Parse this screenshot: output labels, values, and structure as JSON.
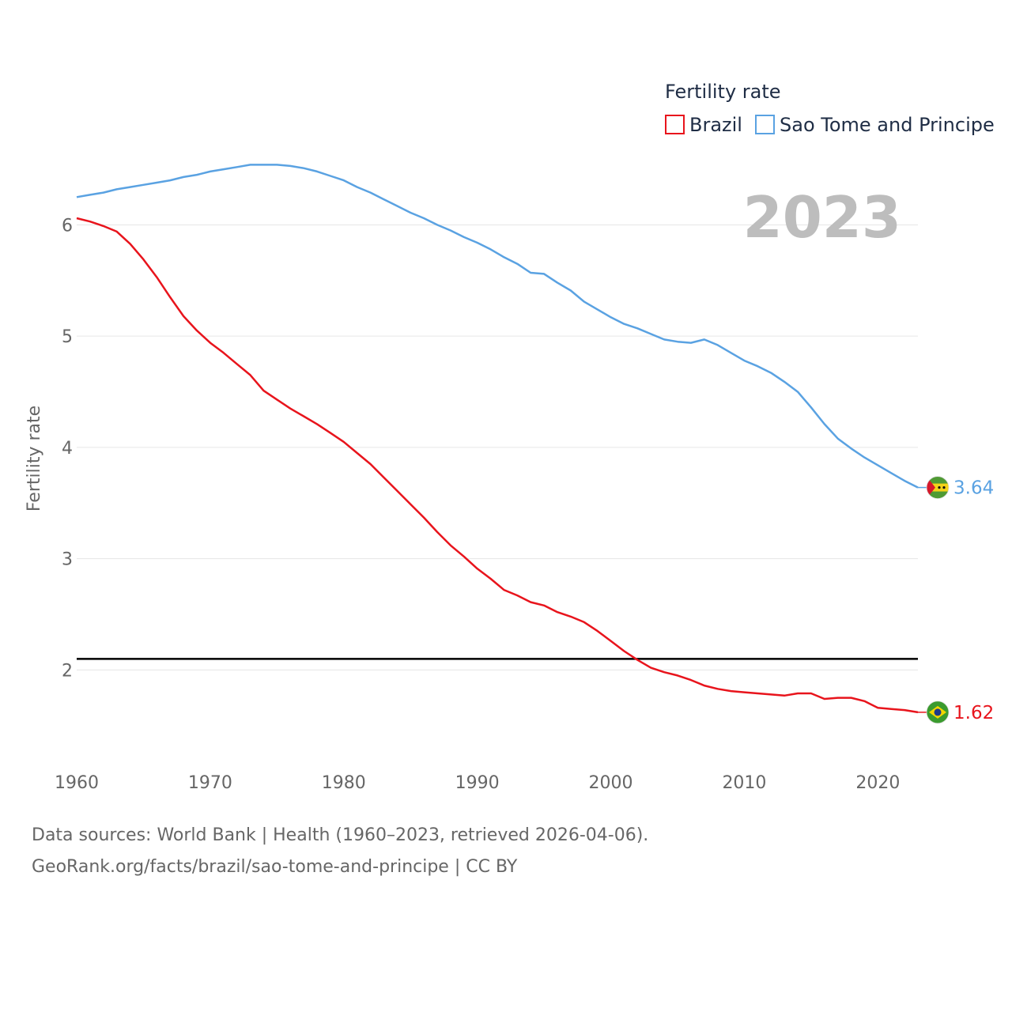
{
  "chart_data": {
    "type": "line",
    "title": "Fertility rate",
    "xlabel": "",
    "ylabel": "Fertility rate",
    "year_label": "2023",
    "xlim": [
      1960,
      2023
    ],
    "ylim": [
      1.2,
      6.6
    ],
    "x_ticks": [
      1960,
      1970,
      1980,
      1990,
      2000,
      2010,
      2020
    ],
    "y_ticks": [
      2,
      3,
      4,
      5,
      6
    ],
    "reference_line": 2.1,
    "x": [
      1960,
      1961,
      1962,
      1963,
      1964,
      1965,
      1966,
      1967,
      1968,
      1969,
      1970,
      1971,
      1972,
      1973,
      1974,
      1975,
      1976,
      1977,
      1978,
      1979,
      1980,
      1981,
      1982,
      1983,
      1984,
      1985,
      1986,
      1987,
      1988,
      1989,
      1990,
      1991,
      1992,
      1993,
      1994,
      1995,
      1996,
      1997,
      1998,
      1999,
      2000,
      2001,
      2002,
      2003,
      2004,
      2005,
      2006,
      2007,
      2008,
      2009,
      2010,
      2011,
      2012,
      2013,
      2014,
      2015,
      2016,
      2017,
      2018,
      2019,
      2020,
      2021,
      2022,
      2023
    ],
    "series": [
      {
        "name": "Brazil",
        "color": "#e8141c",
        "end_label": "1.62",
        "flag": "brazil-flag",
        "values": [
          6.06,
          6.03,
          5.99,
          5.94,
          5.83,
          5.69,
          5.53,
          5.35,
          5.18,
          5.05,
          4.94,
          4.85,
          4.75,
          4.65,
          4.51,
          4.43,
          4.35,
          4.28,
          4.21,
          4.13,
          4.05,
          3.95,
          3.85,
          3.73,
          3.61,
          3.49,
          3.37,
          3.24,
          3.12,
          3.02,
          2.91,
          2.82,
          2.72,
          2.67,
          2.61,
          2.58,
          2.52,
          2.48,
          2.43,
          2.35,
          2.26,
          2.17,
          2.09,
          2.02,
          1.98,
          1.95,
          1.91,
          1.86,
          1.83,
          1.81,
          1.8,
          1.79,
          1.78,
          1.77,
          1.79,
          1.79,
          1.74,
          1.75,
          1.75,
          1.72,
          1.66,
          1.65,
          1.64,
          1.62
        ]
      },
      {
        "name": "Sao Tome and Principe",
        "color": "#5aa2e2",
        "end_label": "3.64",
        "flag": "sao-tome-flag",
        "values": [
          6.25,
          6.27,
          6.29,
          6.32,
          6.34,
          6.36,
          6.38,
          6.4,
          6.43,
          6.45,
          6.48,
          6.5,
          6.52,
          6.54,
          6.54,
          6.54,
          6.53,
          6.51,
          6.48,
          6.44,
          6.4,
          6.34,
          6.29,
          6.23,
          6.17,
          6.11,
          6.06,
          6.0,
          5.95,
          5.89,
          5.84,
          5.78,
          5.71,
          5.65,
          5.57,
          5.56,
          5.48,
          5.41,
          5.31,
          5.24,
          5.17,
          5.11,
          5.07,
          5.02,
          4.97,
          4.95,
          4.94,
          4.97,
          4.92,
          4.85,
          4.78,
          4.73,
          4.67,
          4.59,
          4.5,
          4.36,
          4.21,
          4.08,
          3.99,
          3.91,
          3.84,
          3.77,
          3.7,
          3.64
        ]
      }
    ],
    "legend_position": "top-right"
  },
  "footer": {
    "source_line": "Data sources: World Bank | Health (1960–2023, retrieved 2026-04-06).",
    "url_line": "GeoRank.org/facts/brazil/sao-tome-and-principe | CC BY"
  }
}
